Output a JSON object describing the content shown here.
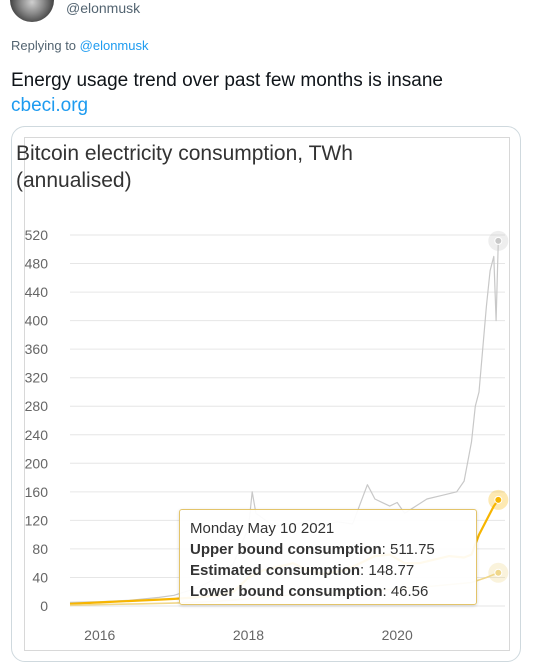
{
  "tweet": {
    "handle": "@elonmusk",
    "replying_prefix": "Replying to ",
    "replying_to": "@elonmusk",
    "text": "Energy usage trend over past few months is insane",
    "link": "cbeci.org"
  },
  "chart_data": {
    "type": "line",
    "title": "Bitcoin electricity consumption, TWh (annualised)",
    "title_lines": [
      "Bitcoin electricity consumption, TWh",
      "(annualised)"
    ],
    "ylim": [
      0,
      520
    ],
    "yticks": [
      0,
      40,
      80,
      120,
      160,
      200,
      240,
      280,
      320,
      360,
      400,
      440,
      480,
      520
    ],
    "xlim": [
      2015.6,
      2021.45
    ],
    "xticks": [
      "2016",
      "2018",
      "2020"
    ],
    "xtick_values": [
      2016,
      2018,
      2020
    ],
    "grid": true,
    "series": [
      {
        "name": "Upper bound consumption",
        "color": "#c8c8c8",
        "x": [
          2015.6,
          2016.0,
          2016.4,
          2016.8,
          2017.0,
          2017.3,
          2017.6,
          2017.8,
          2018.0,
          2018.05,
          2018.1,
          2018.3,
          2018.5,
          2018.8,
          2018.95,
          2019.2,
          2019.4,
          2019.6,
          2019.65,
          2019.7,
          2019.9,
          2020.0,
          2020.1,
          2020.25,
          2020.4,
          2020.6,
          2020.8,
          2020.9,
          2021.0,
          2021.05,
          2021.1,
          2021.2,
          2021.25,
          2021.3,
          2021.33,
          2021.36
        ],
        "values": [
          5,
          6,
          8,
          12,
          15,
          25,
          40,
          60,
          110,
          160,
          130,
          115,
          110,
          120,
          112,
          118,
          115,
          170,
          160,
          150,
          140,
          145,
          130,
          140,
          150,
          155,
          160,
          175,
          230,
          280,
          300,
          420,
          470,
          490,
          400,
          511.75
        ]
      },
      {
        "name": "Estimated consumption",
        "color": "#f7b500",
        "x": [
          2015.6,
          2016.0,
          2016.4,
          2016.8,
          2017.0,
          2017.3,
          2017.6,
          2017.8,
          2018.0,
          2018.2,
          2018.4,
          2018.6,
          2018.8,
          2019.0,
          2019.3,
          2019.5,
          2019.7,
          2019.9,
          2020.1,
          2020.3,
          2020.5,
          2020.7,
          2020.9,
          2021.0,
          2021.1,
          2021.2,
          2021.3,
          2021.36
        ],
        "values": [
          3,
          5,
          7,
          9,
          10,
          12,
          15,
          20,
          40,
          50,
          55,
          60,
          50,
          45,
          50,
          60,
          70,
          72,
          60,
          60,
          65,
          70,
          68,
          72,
          100,
          120,
          140,
          148.77
        ]
      },
      {
        "name": "Lower bound consumption",
        "color": "#f0d78a",
        "x": [
          2015.6,
          2016.0,
          2016.5,
          2017.0,
          2017.5,
          2018.0,
          2018.5,
          2019.0,
          2019.5,
          2020.0,
          2020.5,
          2021.0,
          2021.2,
          2021.36
        ],
        "values": [
          1,
          2,
          3,
          4,
          6,
          10,
          15,
          18,
          20,
          24,
          28,
          33,
          40,
          46.56
        ]
      }
    ],
    "tooltip": {
      "date": "Monday May 10 2021",
      "rows": [
        {
          "label": "Upper bound consumption",
          "value": ": 511.75"
        },
        {
          "label": "Estimated consumption",
          "value": ": 148.77"
        },
        {
          "label": "Lower bound consumption",
          "value": ": 46.56"
        }
      ]
    }
  }
}
